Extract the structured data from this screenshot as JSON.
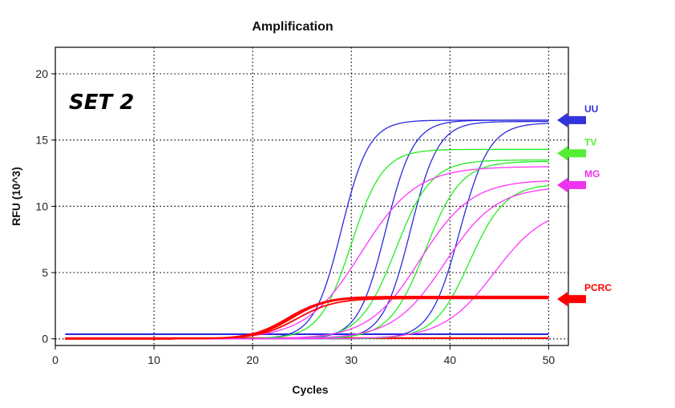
{
  "chart_data": {
    "type": "line",
    "title": "Amplification",
    "xlabel": "Cycles",
    "ylabel": "RFU (10^3)",
    "xlim": [
      0,
      52
    ],
    "ylim": [
      -0.5,
      22
    ],
    "xticks": [
      0,
      10,
      20,
      30,
      40,
      50
    ],
    "yticks": [
      0,
      5,
      10,
      15,
      20
    ],
    "grid": "dotted",
    "annotation": "SET 2",
    "x_range": [
      1,
      50
    ],
    "baseline_lines": [
      {
        "target": "UU",
        "color": "#2a2adf",
        "y": 0.35
      },
      {
        "target": "PCRC",
        "color": "#ff0000",
        "y": 0.05
      }
    ],
    "series": [
      {
        "target": "UU",
        "color": "#2a2adf",
        "plateau": 16.5,
        "midpoint": 29.0,
        "slope": 1.4
      },
      {
        "target": "UU",
        "color": "#2a2adf",
        "plateau": 16.5,
        "midpoint": 33.5,
        "slope": 1.4
      },
      {
        "target": "UU",
        "color": "#2a2adf",
        "plateau": 16.4,
        "midpoint": 36.0,
        "slope": 1.4
      },
      {
        "target": "UU",
        "color": "#2a2adf",
        "plateau": 16.3,
        "midpoint": 41.0,
        "slope": 1.5
      },
      {
        "target": "TV",
        "color": "#22ee22",
        "plateau": 14.3,
        "midpoint": 30.0,
        "slope": 1.6
      },
      {
        "target": "TV",
        "color": "#22ee22",
        "plateau": 13.5,
        "midpoint": 34.5,
        "slope": 1.8
      },
      {
        "target": "TV",
        "color": "#22ee22",
        "plateau": 13.4,
        "midpoint": 37.5,
        "slope": 1.8
      },
      {
        "target": "TV",
        "color": "#22ee22",
        "plateau": 11.7,
        "midpoint": 42.0,
        "slope": 1.8
      },
      {
        "target": "MG",
        "color": "#ff33ff",
        "plateau": 13.0,
        "midpoint": 31.0,
        "slope": 2.8
      },
      {
        "target": "MG",
        "color": "#ff33ff",
        "plateau": 12.0,
        "midpoint": 37.0,
        "slope": 2.6
      },
      {
        "target": "MG",
        "color": "#ff33ff",
        "plateau": 11.5,
        "midpoint": 39.5,
        "slope": 2.6
      },
      {
        "target": "MG",
        "color": "#ff33ff",
        "plateau": 10.0,
        "midpoint": 44.5,
        "slope": 2.6
      },
      {
        "target": "PCRC",
        "color": "#ff0000",
        "plateau": 3.1,
        "midpoint": 23.5,
        "slope": 1.8
      },
      {
        "target": "PCRC",
        "color": "#ff0000",
        "plateau": 3.15,
        "midpoint": 24.0,
        "slope": 1.8
      },
      {
        "target": "PCRC",
        "color": "#ff0000",
        "plateau": 3.05,
        "midpoint": 24.5,
        "slope": 1.9
      },
      {
        "target": "PCRC",
        "color": "#ff0000",
        "plateau": 3.2,
        "midpoint": 23.8,
        "slope": 1.8
      }
    ],
    "legend": [
      {
        "label": "UU",
        "color": "#3333dd",
        "plateau": 16.5
      },
      {
        "label": "TV",
        "color": "#55ee33",
        "plateau": 14.0
      },
      {
        "label": "MG",
        "color": "#ee33ee",
        "plateau": 11.6
      },
      {
        "label": "PCRC",
        "color": "#ff0000",
        "plateau": 3.0
      }
    ]
  }
}
